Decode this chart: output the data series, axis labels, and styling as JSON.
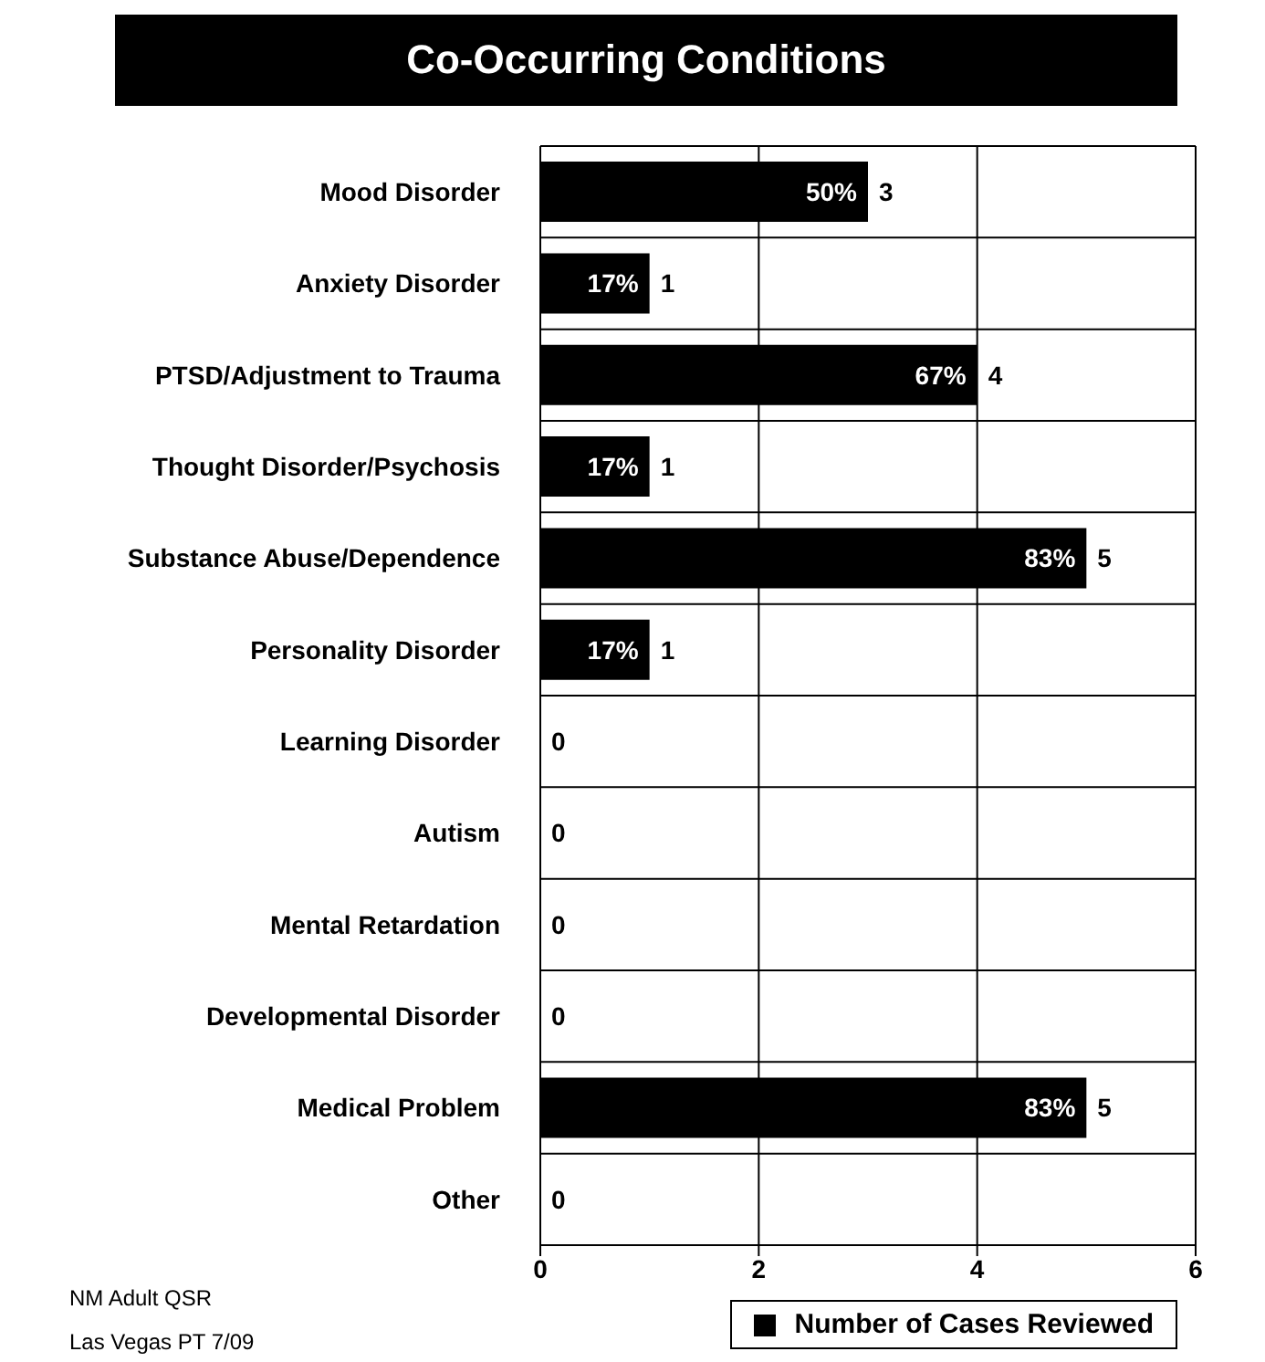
{
  "chart_data": {
    "type": "bar",
    "orientation": "horizontal",
    "title": "Co-Occurring Conditions",
    "categories": [
      "Mood Disorder",
      "Anxiety Disorder",
      "PTSD/Adjustment to Trauma",
      "Thought Disorder/Psychosis",
      "Substance Abuse/Dependence",
      "Personality  Disorder",
      "Learning Disorder",
      "Autism",
      "Mental Retardation",
      "Developmental Disorder",
      "Medical Problem",
      "Other"
    ],
    "series": [
      {
        "name": "Number of Cases Reviewed",
        "color": "#000000",
        "values": [
          3,
          1,
          4,
          1,
          5,
          1,
          0,
          0,
          0,
          0,
          5,
          0
        ]
      }
    ],
    "xlim": [
      0,
      6
    ],
    "xticks": [
      0,
      2,
      4,
      6
    ],
    "grid": true,
    "legend": "bottom right",
    "data_labels": true,
    "annotations": [
      {
        "text": "50%",
        "x": 3,
        "y": "Mood Disorder"
      },
      {
        "text": "17%",
        "x": 1,
        "y": "Anxiety Disorder"
      },
      {
        "text": "67%",
        "x": 4,
        "y": "PTSD/Adjustment to Trauma"
      },
      {
        "text": "17%",
        "x": 1,
        "y": "Thought Disorder/Psychosis"
      },
      {
        "text": "83%",
        "x": 5,
        "y": "Substance Abuse/Dependence"
      },
      {
        "text": "17%",
        "x": 1,
        "y": "Personality  Disorder"
      },
      {
        "text": "83%",
        "x": 5,
        "y": "Medical Problem"
      },
      "NM Adult QSR",
      "Las Vegas PT 7/09"
    ]
  }
}
